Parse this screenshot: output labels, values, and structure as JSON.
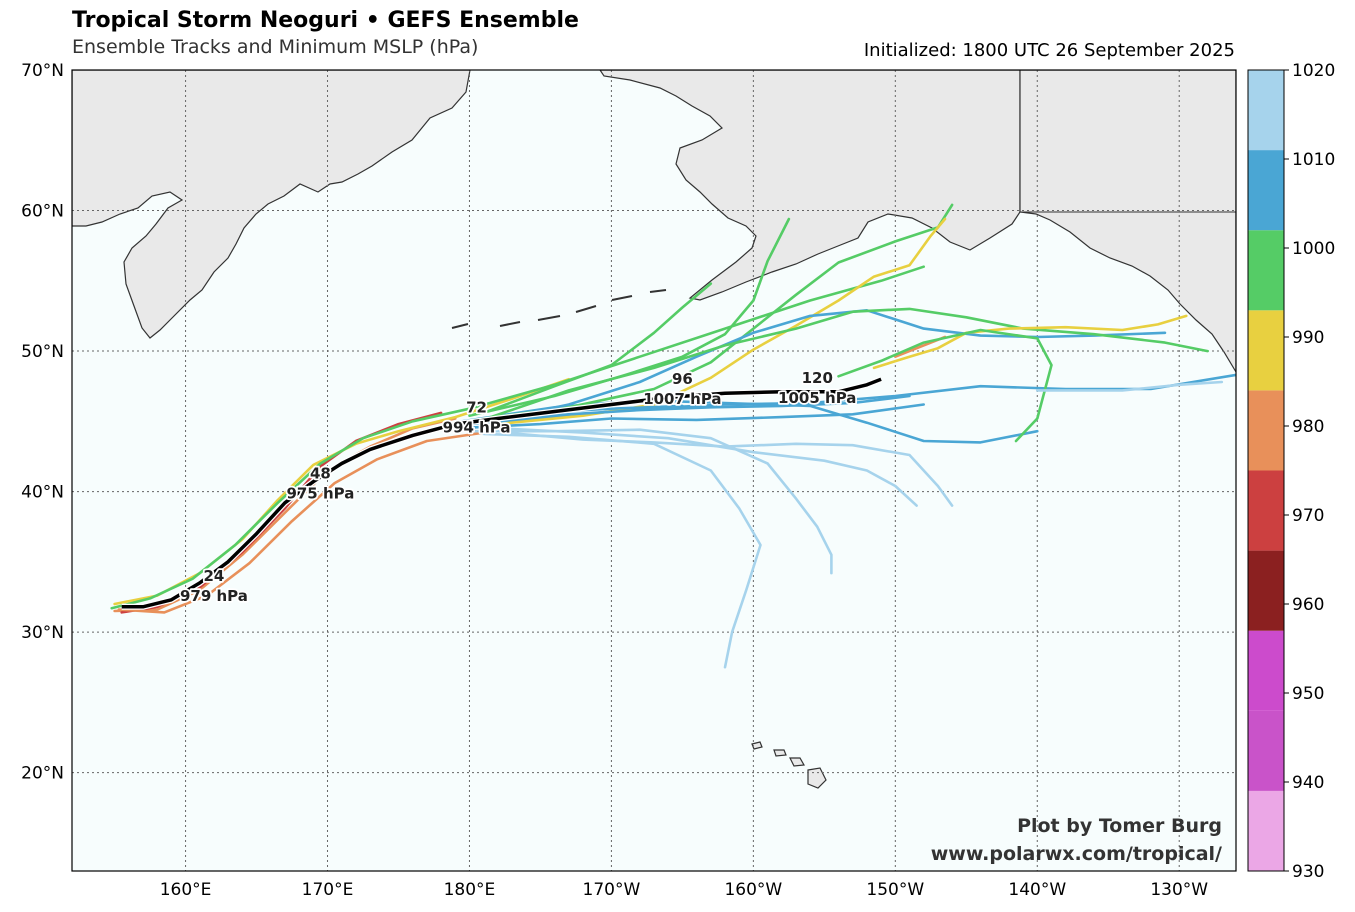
{
  "header": {
    "title": "Tropical Storm Neoguri • GEFS Ensemble",
    "subtitle": "Ensemble Tracks and Minimum MSLP (hPa)",
    "initialized": "Initialized: 1800 UTC 26 September 2025"
  },
  "credits": {
    "line1": "Plot by Tomer Burg",
    "line2": "www.polarwx.com/tropical/"
  },
  "map": {
    "lon_range": [
      152,
      234
    ],
    "lat_range": [
      13,
      70
    ],
    "lat_ticks": [
      {
        "v": 70,
        "label": "70°N"
      },
      {
        "v": 60,
        "label": "60°N"
      },
      {
        "v": 50,
        "label": "50°N"
      },
      {
        "v": 40,
        "label": "40°N"
      },
      {
        "v": 30,
        "label": "30°N"
      },
      {
        "v": 20,
        "label": "20°N"
      }
    ],
    "lon_ticks": [
      {
        "v": 160,
        "label": "160°E"
      },
      {
        "v": 170,
        "label": "170°E"
      },
      {
        "v": 180,
        "label": "180°E"
      },
      {
        "v": 190,
        "label": "170°W"
      },
      {
        "v": 200,
        "label": "160°W"
      },
      {
        "v": 210,
        "label": "150°W"
      },
      {
        "v": 220,
        "label": "140°W"
      },
      {
        "v": 230,
        "label": "130°W"
      }
    ],
    "gridlines": true,
    "ocean_color": "#f7fdfd",
    "land_color": "#e9e9e9"
  },
  "colorbar": {
    "levels": [
      930,
      940,
      950,
      960,
      970,
      980,
      990,
      1000,
      1010,
      1020
    ],
    "colors": [
      "#eba7e6",
      "#c953c9",
      "#cc4bcc",
      "#8b2020",
      "#cc4040",
      "#e8905a",
      "#e8d040",
      "#55cc66",
      "#4aa6d4",
      "#a6d3ec"
    ],
    "labels": [
      "1020",
      "1010",
      "1000",
      "990",
      "980",
      "970",
      "960",
      "950",
      "940",
      "930"
    ]
  },
  "track": {
    "color": "#000000",
    "points": [
      [
        155.5,
        31.8
      ],
      [
        157,
        31.8
      ],
      [
        159,
        32.3
      ],
      [
        161,
        33.5
      ],
      [
        163,
        35
      ],
      [
        165,
        37
      ],
      [
        167,
        39.2
      ],
      [
        169,
        40.7
      ],
      [
        171,
        42
      ],
      [
        173,
        43
      ],
      [
        176,
        44
      ],
      [
        179,
        44.8
      ],
      [
        182,
        45.2
      ],
      [
        186,
        45.7
      ],
      [
        190,
        46.2
      ],
      [
        194,
        46.7
      ],
      [
        198,
        47.0
      ],
      [
        202,
        47.1
      ],
      [
        206,
        47.1
      ],
      [
        208,
        47.6
      ],
      [
        209,
        48.0
      ]
    ],
    "labels": [
      {
        "lon": 162,
        "lat": 33.5,
        "hour": "24",
        "pres": "979 hPa"
      },
      {
        "lon": 169.5,
        "lat": 40.8,
        "hour": "48",
        "pres": "975 hPa"
      },
      {
        "lon": 180.5,
        "lat": 45.5,
        "hour": "72",
        "pres": "994 hPa"
      },
      {
        "lon": 195,
        "lat": 47.5,
        "hour": "96",
        "pres": "1007 hPa"
      },
      {
        "lon": 204.5,
        "lat": 47.6,
        "hour": "120",
        "pres": "1005 hPa"
      }
    ]
  },
  "ensemble": [
    {
      "color": "#e8905a",
      "points": [
        [
          155,
          31.5
        ],
        [
          158,
          31.6
        ],
        [
          161,
          33
        ],
        [
          164,
          35.5
        ],
        [
          167,
          38.5
        ],
        [
          170,
          41.5
        ],
        [
          173,
          43.2
        ],
        [
          176,
          44.5
        ],
        [
          179,
          45.2
        ]
      ]
    },
    {
      "color": "#cc4040",
      "points": [
        [
          155.5,
          31.4
        ],
        [
          158,
          31.8
        ],
        [
          161,
          33.2
        ],
        [
          164,
          35.7
        ],
        [
          167,
          38.8
        ],
        [
          169.5,
          41.8
        ],
        [
          172,
          43.6
        ],
        [
          175,
          44.8
        ],
        [
          178,
          45.6
        ]
      ]
    },
    {
      "color": "#e8d040",
      "points": [
        [
          155,
          32
        ],
        [
          158,
          32.6
        ],
        [
          161,
          34.2
        ],
        [
          164,
          36.6
        ],
        [
          166.5,
          39.4
        ],
        [
          169,
          41.9
        ],
        [
          172,
          43.4
        ],
        [
          175,
          44.3
        ],
        [
          179,
          45.3
        ],
        [
          183,
          46.6
        ],
        [
          187,
          48
        ]
      ]
    },
    {
      "color": "#e8905a",
      "points": [
        [
          155.3,
          31.6
        ],
        [
          158.5,
          31.4
        ],
        [
          161.5,
          32.6
        ],
        [
          164.5,
          34.9
        ],
        [
          167.5,
          37.9
        ],
        [
          170.5,
          40.6
        ],
        [
          173.5,
          42.3
        ],
        [
          177,
          43.6
        ],
        [
          181,
          44.2
        ]
      ]
    },
    {
      "color": "#55cc66",
      "points": [
        [
          154.8,
          31.7
        ],
        [
          157.5,
          32.4
        ],
        [
          160.5,
          33.8
        ],
        [
          163.5,
          36.2
        ],
        [
          166.5,
          39.2
        ],
        [
          169.5,
          42
        ],
        [
          172.5,
          43.8
        ],
        [
          176,
          45
        ],
        [
          180,
          45.9
        ],
        [
          186,
          47.6
        ],
        [
          192,
          49.6
        ],
        [
          198,
          51.6
        ],
        [
          204,
          53.6
        ],
        [
          209,
          55
        ],
        [
          212,
          56
        ]
      ]
    },
    {
      "color": "#4aa6d4",
      "points": [
        [
          180,
          44.8
        ],
        [
          186,
          45.3
        ],
        [
          192,
          45.9
        ],
        [
          198,
          46.2
        ],
        [
          204,
          46.3
        ],
        [
          210,
          46.8
        ],
        [
          216,
          47.5
        ],
        [
          222,
          47.3
        ],
        [
          228,
          47.3
        ],
        [
          234,
          48.3
        ]
      ]
    },
    {
      "color": "#4aa6d4",
      "points": [
        [
          179,
          44.5
        ],
        [
          185,
          44.8
        ],
        [
          190,
          45.2
        ],
        [
          196,
          45.1
        ],
        [
          202,
          45.3
        ],
        [
          207,
          45.5
        ],
        [
          212,
          46.2
        ]
      ]
    },
    {
      "color": "#a6d3ec",
      "points": [
        [
          180,
          44.3
        ],
        [
          186,
          44.3
        ],
        [
          192,
          44.4
        ],
        [
          197,
          43.8
        ],
        [
          201,
          42
        ],
        [
          203,
          39.5
        ],
        [
          204.5,
          37.5
        ],
        [
          205.5,
          35.5
        ],
        [
          205.5,
          34.2
        ]
      ]
    },
    {
      "color": "#a6d3ec",
      "points": [
        [
          181,
          44.1
        ],
        [
          187,
          43.9
        ],
        [
          193,
          43.4
        ],
        [
          197,
          41.5
        ],
        [
          199,
          38.8
        ],
        [
          200.5,
          36.2
        ],
        [
          199.5,
          33
        ],
        [
          198.5,
          30
        ],
        [
          198,
          27.5
        ]
      ]
    },
    {
      "color": "#a6d3ec",
      "points": [
        [
          182,
          44.5
        ],
        [
          188,
          44.2
        ],
        [
          194,
          43.8
        ],
        [
          200,
          42.8
        ],
        [
          205,
          42.2
        ],
        [
          208,
          41.5
        ],
        [
          210,
          40.4
        ],
        [
          211.5,
          39
        ]
      ]
    },
    {
      "color": "#4aa6d4",
      "points": [
        [
          179.5,
          45
        ],
        [
          186,
          46
        ],
        [
          192,
          46.5
        ],
        [
          198,
          46.3
        ],
        [
          204,
          46.1
        ],
        [
          208,
          44.9
        ],
        [
          212,
          43.6
        ],
        [
          216,
          43.5
        ],
        [
          220,
          44.3
        ]
      ]
    },
    {
      "color": "#55cc66",
      "points": [
        [
          180,
          45.4
        ],
        [
          186,
          46.8
        ],
        [
          191,
          48.3
        ],
        [
          195,
          49.6
        ],
        [
          198,
          51.2
        ],
        [
          200,
          53.6
        ],
        [
          201,
          56.4
        ],
        [
          202.5,
          59.4
        ]
      ]
    },
    {
      "color": "#55cc66",
      "points": [
        [
          181,
          45.2
        ],
        [
          187,
          46
        ],
        [
          193,
          47.3
        ],
        [
          197,
          49.2
        ],
        [
          200,
          51.6
        ],
        [
          203,
          54
        ],
        [
          206,
          56.3
        ],
        [
          210,
          57.8
        ],
        [
          213,
          58.8
        ],
        [
          214,
          60.4
        ]
      ]
    },
    {
      "color": "#e8d040",
      "points": [
        [
          182,
          44.8
        ],
        [
          188,
          45.4
        ],
        [
          193,
          46.2
        ],
        [
          197,
          48.1
        ],
        [
          200,
          50.1
        ],
        [
          203,
          51.8
        ],
        [
          206,
          53.6
        ],
        [
          208.5,
          55.3
        ],
        [
          211,
          56.1
        ],
        [
          212.5,
          58.2
        ],
        [
          213.5,
          59.4
        ]
      ]
    },
    {
      "color": "#4aa6d4",
      "points": [
        [
          181,
          44.9
        ],
        [
          187,
          46.2
        ],
        [
          192,
          47.8
        ],
        [
          196,
          49.6
        ],
        [
          200,
          51.3
        ],
        [
          204,
          52.5
        ],
        [
          208,
          52.9
        ],
        [
          212,
          51.6
        ],
        [
          216,
          51.1
        ],
        [
          220,
          51
        ],
        [
          224,
          51.1
        ],
        [
          229,
          51.3
        ]
      ]
    },
    {
      "color": "#55cc66",
      "points": [
        [
          181.5,
          45.3
        ],
        [
          187,
          47.2
        ],
        [
          193,
          48.8
        ],
        [
          198,
          50.4
        ],
        [
          203,
          51.6
        ],
        [
          207,
          52.8
        ],
        [
          211,
          53
        ],
        [
          215,
          52.4
        ],
        [
          219,
          51.6
        ],
        [
          224,
          51.2
        ],
        [
          229,
          50.6
        ],
        [
          232,
          50
        ]
      ]
    },
    {
      "color": "#e8d040",
      "points": [
        [
          208.5,
          48.8
        ],
        [
          211,
          49.6
        ],
        [
          213,
          50.2
        ],
        [
          215,
          51.3
        ],
        [
          218,
          51.6
        ],
        [
          222,
          51.7
        ],
        [
          226,
          51.5
        ],
        [
          228.5,
          51.9
        ],
        [
          230.5,
          52.5
        ]
      ]
    },
    {
      "color": "#e8905a",
      "points": [
        [
          210,
          49.6
        ],
        [
          212,
          50.4
        ],
        [
          213.5,
          51
        ]
      ]
    },
    {
      "color": "#55cc66",
      "points": [
        [
          206,
          48.2
        ],
        [
          209,
          49.3
        ],
        [
          212,
          50.6
        ],
        [
          216,
          51.5
        ],
        [
          220,
          50.9
        ],
        [
          221,
          49
        ],
        [
          220,
          45.2
        ],
        [
          218.5,
          43.6
        ]
      ]
    },
    {
      "color": "#4aa6d4",
      "points": [
        [
          181,
          45.1
        ],
        [
          187,
          45.5
        ],
        [
          192,
          45.8
        ],
        [
          197,
          46
        ],
        [
          202,
          46.1
        ],
        [
          207,
          46.3
        ],
        [
          211,
          46.8
        ]
      ]
    },
    {
      "color": "#a6d3ec",
      "points": [
        [
          182.5,
          44.2
        ],
        [
          188,
          43.7
        ],
        [
          193,
          43.5
        ],
        [
          198,
          43.2
        ],
        [
          203,
          43.4
        ],
        [
          207,
          43.3
        ],
        [
          211,
          42.6
        ],
        [
          213,
          40.4
        ],
        [
          214,
          39
        ]
      ]
    },
    {
      "color": "#a6d3ec",
      "points": [
        [
          220,
          47.2
        ],
        [
          226,
          47.2
        ],
        [
          230,
          47.6
        ],
        [
          233,
          47.8
        ]
      ]
    },
    {
      "color": "#4aa6d4",
      "points": [
        [
          180,
          45
        ],
        [
          186,
          45.7
        ],
        [
          190,
          45.9
        ],
        [
          195,
          46.1
        ]
      ]
    },
    {
      "color": "#55cc66",
      "points": [
        [
          181,
          45.6
        ],
        [
          186,
          47.5
        ],
        [
          190,
          49
        ],
        [
          193,
          51.3
        ],
        [
          195,
          53.1
        ],
        [
          197,
          54.8
        ]
      ]
    }
  ]
}
